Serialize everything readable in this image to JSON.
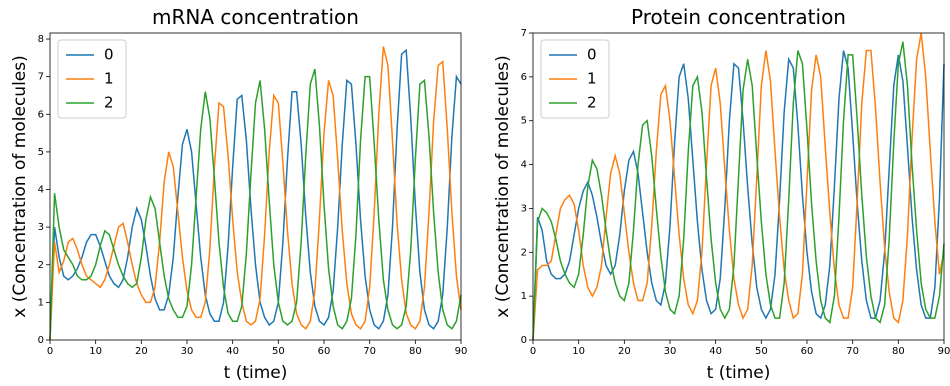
{
  "chart_data": [
    {
      "type": "line",
      "title": "mRNA concentration",
      "xlabel": "t (time)",
      "ylabel": "x (Concentration of molecules)",
      "x": [
        0,
        1,
        2,
        3,
        4,
        5,
        6,
        7,
        8,
        9,
        10,
        11,
        12,
        13,
        14,
        15,
        16,
        17,
        18,
        19,
        20,
        21,
        22,
        23,
        24,
        25,
        26,
        27,
        28,
        29,
        30,
        31,
        32,
        33,
        34,
        35,
        36,
        37,
        38,
        39,
        40,
        41,
        42,
        43,
        44,
        45,
        46,
        47,
        48,
        49,
        50,
        51,
        52,
        53,
        54,
        55,
        56,
        57,
        58,
        59,
        60,
        61,
        62,
        63,
        64,
        65,
        66,
        67,
        68,
        69,
        70,
        71,
        72,
        73,
        74,
        75,
        76,
        77,
        78,
        79,
        80,
        81,
        82,
        83,
        84,
        85,
        86,
        87,
        88,
        89,
        90
      ],
      "series": [
        {
          "name": "0",
          "color": "#1f77b4",
          "values": [
            0,
            3.0,
            2.2,
            1.7,
            1.6,
            1.7,
            1.9,
            2.2,
            2.6,
            2.8,
            2.8,
            2.5,
            2.1,
            1.7,
            1.5,
            1.4,
            1.6,
            2.2,
            3.0,
            3.5,
            3.2,
            2.5,
            1.7,
            1.1,
            0.8,
            0.8,
            1.2,
            2.2,
            3.8,
            5.2,
            5.6,
            5.0,
            3.6,
            2.2,
            1.2,
            0.7,
            0.5,
            0.5,
            1.0,
            2.5,
            4.6,
            6.4,
            6.5,
            5.3,
            3.5,
            2.0,
            1.0,
            0.6,
            0.4,
            0.5,
            1.0,
            2.6,
            4.8,
            6.6,
            6.6,
            5.2,
            3.3,
            1.8,
            0.9,
            0.5,
            0.4,
            0.6,
            1.3,
            3.0,
            5.2,
            6.9,
            6.8,
            5.2,
            3.2,
            1.7,
            0.8,
            0.4,
            0.3,
            0.5,
            1.2,
            3.0,
            5.6,
            7.6,
            7.7,
            5.9,
            3.6,
            1.8,
            0.8,
            0.4,
            0.3,
            0.5,
            1.2,
            3.0,
            5.4,
            7.0,
            6.8
          ]
        },
        {
          "name": "1",
          "color": "#ff7f0e",
          "values": [
            0,
            2.6,
            1.8,
            2.1,
            2.6,
            2.7,
            2.4,
            2.0,
            1.7,
            1.6,
            1.5,
            1.4,
            1.6,
            2.0,
            2.5,
            3.0,
            3.1,
            2.6,
            2.0,
            1.5,
            1.2,
            1.0,
            1.0,
            1.4,
            2.6,
            4.2,
            5.0,
            4.6,
            3.4,
            2.2,
            1.3,
            0.8,
            0.6,
            0.6,
            1.0,
            2.4,
            4.6,
            6.3,
            6.2,
            4.9,
            3.2,
            1.8,
            1.0,
            0.5,
            0.4,
            0.5,
            1.1,
            2.8,
            5.0,
            6.5,
            6.3,
            4.7,
            2.9,
            1.5,
            0.7,
            0.4,
            0.3,
            0.5,
            1.3,
            3.2,
            5.5,
            6.9,
            6.5,
            4.8,
            2.9,
            1.5,
            0.7,
            0.4,
            0.3,
            0.5,
            1.4,
            3.4,
            6.0,
            7.8,
            7.3,
            5.3,
            3.1,
            1.6,
            0.7,
            0.4,
            0.3,
            0.5,
            1.4,
            3.4,
            5.8,
            7.3,
            7.4,
            5.6,
            3.4,
            1.7,
            0.8
          ]
        },
        {
          "name": "2",
          "color": "#2ca02c",
          "values": [
            0,
            3.9,
            3.0,
            2.4,
            2.2,
            2.0,
            1.7,
            1.6,
            1.6,
            1.7,
            2.0,
            2.5,
            2.9,
            2.8,
            2.4,
            2.0,
            1.7,
            1.5,
            1.4,
            1.5,
            2.2,
            3.2,
            3.8,
            3.5,
            2.6,
            1.7,
            1.1,
            0.8,
            0.6,
            0.6,
            0.9,
            2.0,
            3.8,
            5.6,
            6.6,
            5.9,
            4.3,
            2.6,
            1.4,
            0.7,
            0.5,
            0.5,
            0.9,
            2.3,
            4.4,
            6.3,
            6.9,
            5.6,
            3.7,
            2.0,
            1.0,
            0.5,
            0.4,
            0.5,
            1.0,
            2.6,
            4.9,
            6.8,
            7.2,
            5.7,
            3.6,
            1.9,
            0.9,
            0.4,
            0.3,
            0.5,
            1.1,
            2.8,
            5.3,
            7.0,
            7.0,
            5.2,
            3.2,
            1.6,
            0.8,
            0.4,
            0.3,
            0.4,
            0.9,
            2.4,
            4.8,
            6.8,
            6.9,
            5.4,
            3.4,
            1.8,
            0.8,
            0.4,
            0.3,
            0.5,
            1.2
          ]
        }
      ],
      "xlim": [
        0,
        90
      ],
      "xticks": [
        0,
        10,
        20,
        30,
        40,
        50,
        60,
        70,
        80,
        90
      ],
      "ylim": [
        0,
        8.16
      ],
      "yticks": [
        0,
        1,
        2,
        3,
        4,
        5,
        6,
        7,
        8
      ],
      "legend": "upper left"
    },
    {
      "type": "line",
      "title": "Protein concentration",
      "xlabel": "t (time)",
      "ylabel": "x (Concentration of molecules)",
      "x": [
        0,
        1,
        2,
        3,
        4,
        5,
        6,
        7,
        8,
        9,
        10,
        11,
        12,
        13,
        14,
        15,
        16,
        17,
        18,
        19,
        20,
        21,
        22,
        23,
        24,
        25,
        26,
        27,
        28,
        29,
        30,
        31,
        32,
        33,
        34,
        35,
        36,
        37,
        38,
        39,
        40,
        41,
        42,
        43,
        44,
        45,
        46,
        47,
        48,
        49,
        50,
        51,
        52,
        53,
        54,
        55,
        56,
        57,
        58,
        59,
        60,
        61,
        62,
        63,
        64,
        65,
        66,
        67,
        68,
        69,
        70,
        71,
        72,
        73,
        74,
        75,
        76,
        77,
        78,
        79,
        80,
        81,
        82,
        83,
        84,
        85,
        86,
        87,
        88,
        89,
        90
      ],
      "series": [
        {
          "name": "0",
          "color": "#1f77b4",
          "values": [
            0,
            2.8,
            2.5,
            1.8,
            1.5,
            1.4,
            1.4,
            1.5,
            1.8,
            2.4,
            3.0,
            3.4,
            3.6,
            3.3,
            2.8,
            2.2,
            1.7,
            1.5,
            1.7,
            2.4,
            3.4,
            4.1,
            4.3,
            3.8,
            2.9,
            2.0,
            1.3,
            0.9,
            0.8,
            1.3,
            2.6,
            4.5,
            6.0,
            6.3,
            5.5,
            4.1,
            2.7,
            1.6,
            0.9,
            0.6,
            0.7,
            1.4,
            3.0,
            5.0,
            6.3,
            6.2,
            5.0,
            3.5,
            2.2,
            1.2,
            0.7,
            0.5,
            0.7,
            1.5,
            3.2,
            5.2,
            6.4,
            6.2,
            4.9,
            3.3,
            2.0,
            1.1,
            0.6,
            0.5,
            0.8,
            1.7,
            3.5,
            5.5,
            6.6,
            6.2,
            4.7,
            3.1,
            1.8,
            0.9,
            0.5,
            0.5,
            0.9,
            2.0,
            3.9,
            5.8,
            6.5,
            5.9,
            4.4,
            2.8,
            1.6,
            0.8,
            0.5,
            0.5,
            1.2,
            3.2,
            6.3
          ]
        },
        {
          "name": "1",
          "color": "#ff7f0e",
          "values": [
            0,
            1.6,
            1.7,
            1.7,
            1.8,
            2.4,
            3.0,
            3.2,
            3.3,
            3.1,
            2.5,
            1.7,
            1.2,
            1.0,
            1.2,
            1.7,
            2.8,
            3.8,
            4.2,
            3.8,
            2.9,
            2.0,
            1.3,
            0.9,
            0.9,
            1.3,
            2.6,
            4.3,
            5.6,
            5.8,
            5.0,
            3.7,
            2.4,
            1.4,
            0.8,
            0.6,
            0.9,
            2.0,
            4.0,
            5.8,
            6.2,
            5.4,
            3.9,
            2.5,
            1.4,
            0.8,
            0.5,
            0.7,
            1.7,
            3.7,
            5.8,
            6.6,
            5.9,
            4.3,
            2.8,
            1.6,
            0.9,
            0.5,
            0.6,
            1.5,
            3.6,
            5.7,
            6.5,
            6.0,
            4.4,
            2.9,
            1.6,
            0.8,
            0.5,
            0.5,
            1.2,
            3.2,
            5.4,
            6.6,
            6.6,
            5.3,
            3.6,
            2.1,
            1.1,
            0.5,
            0.4,
            0.9,
            2.4,
            4.6,
            6.4,
            7.0,
            6.0,
            4.3,
            2.7,
            1.5,
            2.0
          ]
        },
        {
          "name": "2",
          "color": "#2ca02c",
          "values": [
            0,
            2.7,
            3.0,
            2.9,
            2.7,
            2.3,
            1.8,
            1.5,
            1.3,
            1.2,
            1.5,
            2.4,
            3.5,
            4.1,
            3.9,
            3.3,
            2.5,
            1.8,
            1.3,
            1.0,
            0.9,
            1.3,
            2.5,
            4.0,
            4.9,
            5.0,
            4.2,
            3.0,
            1.9,
            1.1,
            0.7,
            0.6,
            1.0,
            2.3,
            4.3,
            5.8,
            6.0,
            5.2,
            3.7,
            2.3,
            1.3,
            0.7,
            0.5,
            0.7,
            1.7,
            3.7,
            5.7,
            6.4,
            5.8,
            4.2,
            2.7,
            1.5,
            0.8,
            0.5,
            0.5,
            1.3,
            3.2,
            5.4,
            6.6,
            6.3,
            4.8,
            3.1,
            1.8,
            0.9,
            0.5,
            0.4,
            1.0,
            2.8,
            5.0,
            6.5,
            6.5,
            5.0,
            3.3,
            1.9,
            1.0,
            0.5,
            0.4,
            0.8,
            2.3,
            4.5,
            6.3,
            6.8,
            5.8,
            4.0,
            2.5,
            1.3,
            0.7,
            0.5,
            0.5,
            1.0,
            2.2
          ]
        }
      ],
      "xlim": [
        0,
        90
      ],
      "xticks": [
        0,
        10,
        20,
        30,
        40,
        50,
        60,
        70,
        80,
        90
      ],
      "ylim": [
        0,
        7
      ],
      "yticks": [
        0,
        1,
        2,
        3,
        4,
        5,
        6,
        7
      ],
      "legend": "upper left"
    }
  ]
}
